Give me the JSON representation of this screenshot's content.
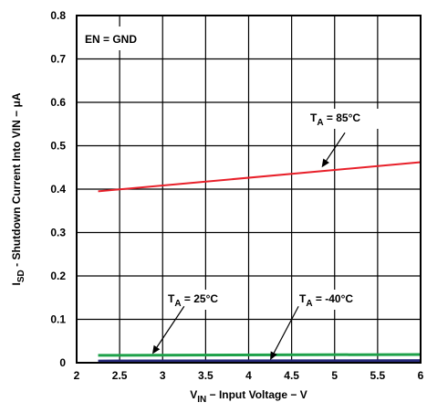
{
  "chart_data": {
    "type": "line",
    "xlabel_main": "V",
    "xlabel_sub": "IN",
    "xlabel_rest": " − Input Voltage − V",
    "ylabel_main": "I",
    "ylabel_sub": "SD",
    "ylabel_rest": " - Shutdown Current Into VIN − μA",
    "xlim": [
      2,
      6
    ],
    "ylim": [
      0,
      0.8
    ],
    "x_ticks": [
      "2",
      "2.5",
      "3",
      "3.5",
      "4",
      "4.5",
      "5",
      "5.5",
      "6"
    ],
    "y_ticks": [
      "0",
      "0.1",
      "0.2",
      "0.3",
      "0.4",
      "0.5",
      "0.6",
      "0.7",
      "0.8"
    ],
    "grid": true,
    "condition_label": "EN = GND",
    "series": [
      {
        "name": "TA = 85°C",
        "ann_main": "T",
        "ann_sub": "A",
        "ann_rest": " = 85°C",
        "color": "#e8202a",
        "x": [
          2.25,
          6
        ],
        "y": [
          0.395,
          0.462
        ]
      },
      {
        "name": "TA = 25°C",
        "ann_main": "T",
        "ann_sub": "A",
        "ann_rest": " = 25°C",
        "color": "#1ea14a",
        "x": [
          2.25,
          6
        ],
        "y": [
          0.017,
          0.019
        ]
      },
      {
        "name": "TA = -40°C",
        "ann_main": "T",
        "ann_sub": "A",
        "ann_rest": " = -40°C",
        "color": "#26297a",
        "x": [
          2.25,
          6
        ],
        "y": [
          0.003,
          0.004
        ]
      }
    ]
  }
}
